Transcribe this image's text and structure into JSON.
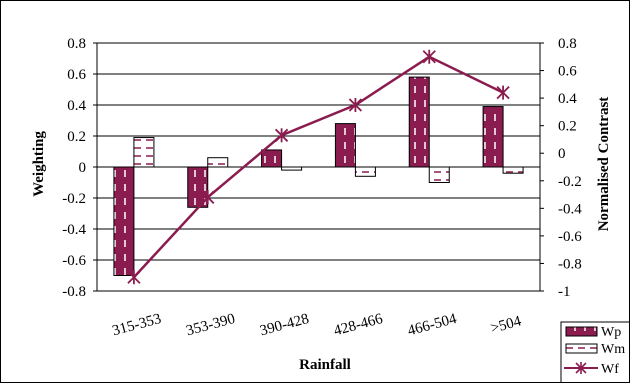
{
  "chart_data": {
    "type": "bar",
    "categories": [
      "315-353",
      "353-390",
      "390-428",
      "428-466",
      "466-504",
      ">504"
    ],
    "xlabel": "Rainfall",
    "ylabel": "Weighting",
    "y2label": "Normalised Contrast",
    "ylim": [
      -0.8,
      0.8
    ],
    "y2lim": [
      -1,
      0.8
    ],
    "yticks": [
      "-0.8",
      "-0.6",
      "-0.4",
      "-0.2",
      "0",
      "0.2",
      "0.4",
      "0.6",
      "0.8"
    ],
    "y2ticks": [
      "-1",
      "-0.8",
      "-0.6",
      "-0.4",
      "-0.2",
      "0",
      "0.2",
      "0.4",
      "0.6",
      "0.8"
    ],
    "grid": true,
    "legend_position": "bottom-right",
    "series": [
      {
        "name": "Wp",
        "type": "bar",
        "axis": "left",
        "color": "#8b1c4f",
        "pattern": "dashed-vertical-white",
        "values": [
          -0.7,
          -0.26,
          0.11,
          0.28,
          0.58,
          0.39
        ]
      },
      {
        "name": "Wm",
        "type": "bar",
        "axis": "left",
        "color": "#ffffff",
        "pattern": "dashed-horizontal-maroon",
        "values": [
          0.19,
          0.06,
          -0.02,
          -0.06,
          -0.1,
          -0.04
        ]
      },
      {
        "name": "Wf",
        "type": "line",
        "axis": "right",
        "color": "#8b1c4f",
        "marker": "asterisk",
        "values": [
          -0.9,
          -0.32,
          0.13,
          0.35,
          0.7,
          0.44
        ]
      }
    ]
  }
}
